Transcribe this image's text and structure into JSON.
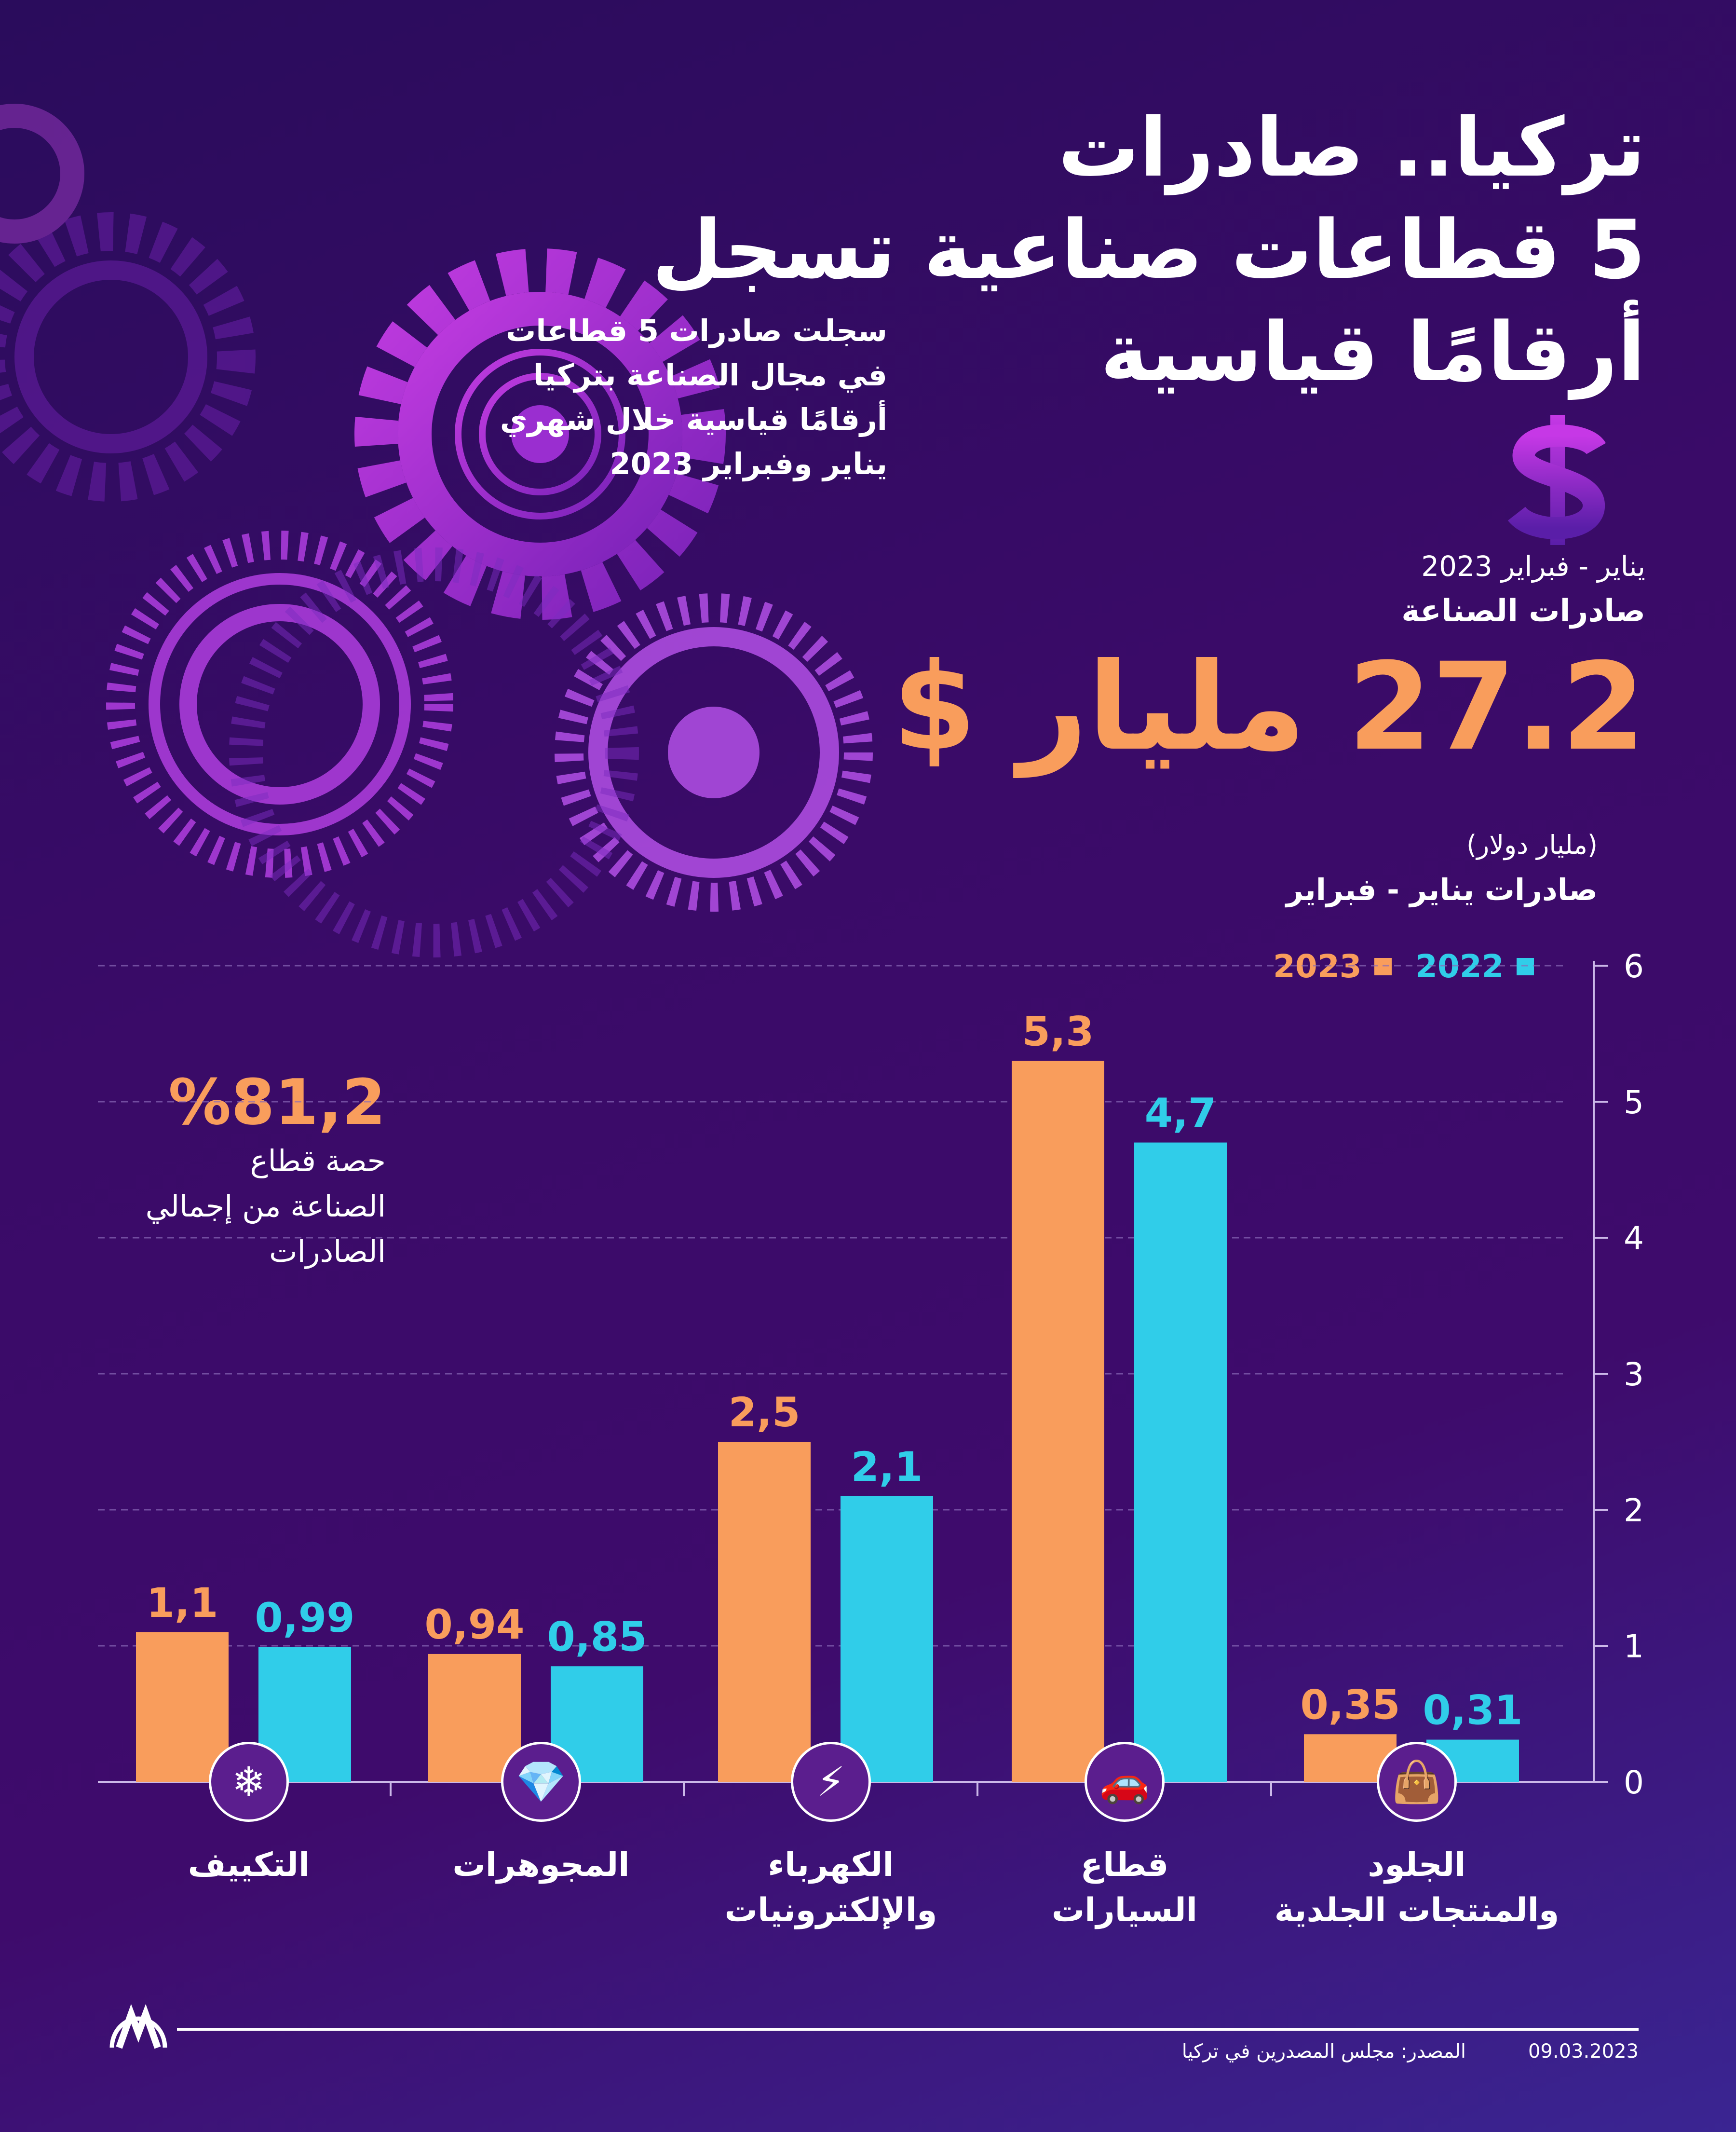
{
  "header": {
    "title_lines": [
      "تركيا.. صادرات",
      "5 قطاعات صناعية تسجل",
      "أرقامًا قياسية"
    ],
    "subtitle_lines": [
      "سجلت صادرات 5 قطاعات",
      "في مجال الصناعة بتركيا",
      "أرقامًا قياسية خلال شهري",
      "يناير وفبراير 2023"
    ]
  },
  "kpi": {
    "period": "يناير - فبراير 2023",
    "label": "صادرات الصناعة",
    "value": "27.2 مليار $"
  },
  "share": {
    "value": "%81,2",
    "caption_lines": [
      "حصة قطاع",
      "الصناعة من إجمالي",
      "الصادرات"
    ]
  },
  "footer": {
    "logo": "AA",
    "source": "المصدر: مجلس المصدرين في تركيا",
    "date": "09.03.2023"
  },
  "colors": {
    "y2023": "#f99d5c",
    "y2022": "#30cde9",
    "kpi": "#f99d5c"
  },
  "chart_data": {
    "type": "bar",
    "title": "صادرات يناير - فبراير",
    "unit": "(مليار دولار)",
    "categories": [
      {
        "lines": [
          "التكييف"
        ],
        "icon": "air-conditioner-icon",
        "glyph": "❄"
      },
      {
        "lines": [
          "المجوهرات"
        ],
        "icon": "diamond-icon",
        "glyph": "💎"
      },
      {
        "lines": [
          "الكهرباء",
          "والإلكترونيات"
        ],
        "icon": "lightning-icon",
        "glyph": "⚡"
      },
      {
        "lines": [
          "قطاع",
          "السيارات"
        ],
        "icon": "car-icon",
        "glyph": "🚗"
      },
      {
        "lines": [
          "الجلود",
          "والمنتجات الجلدية"
        ],
        "icon": "leather-goods-icon",
        "glyph": "👜"
      }
    ],
    "series": [
      {
        "name": "2023",
        "values": [
          1.1,
          0.94,
          2.5,
          5.3,
          0.35
        ],
        "labels": [
          "1,1",
          "0,94",
          "2,5",
          "5,3",
          "0,35"
        ]
      },
      {
        "name": "2022",
        "values": [
          0.99,
          0.85,
          2.1,
          4.7,
          0.31
        ],
        "labels": [
          "0,99",
          "0,85",
          "2,1",
          "4,7",
          "0,31"
        ]
      }
    ],
    "ylim": [
      0,
      6
    ],
    "yticks": [
      "0",
      "1",
      "2",
      "3",
      "4",
      "5",
      "6"
    ],
    "grid": true,
    "legend": "top-right"
  }
}
